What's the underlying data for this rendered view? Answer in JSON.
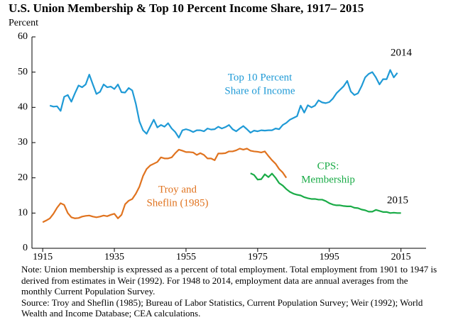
{
  "chart_data": {
    "type": "line",
    "title": "U.S. Union Membership & Top 10 Percent Income Share, 1917– 2015",
    "y_label": "Percent",
    "xlim": [
      1912,
      2022
    ],
    "xticks": [
      1915,
      1935,
      1955,
      1975,
      1995,
      2015
    ],
    "ylim": [
      0,
      60
    ],
    "yticks": [
      0,
      10,
      20,
      30,
      40,
      50,
      60
    ],
    "grid": false,
    "series": [
      {
        "name": [
          "Top 10 Percent",
          "Share of Income"
        ],
        "end_label": "2014",
        "color": "#1f9ad6",
        "x": [
          1917,
          1918,
          1919,
          1920,
          1921,
          1922,
          1923,
          1924,
          1925,
          1926,
          1927,
          1928,
          1929,
          1930,
          1931,
          1932,
          1933,
          1934,
          1935,
          1936,
          1937,
          1938,
          1939,
          1940,
          1941,
          1942,
          1943,
          1944,
          1945,
          1946,
          1947,
          1948,
          1949,
          1950,
          1951,
          1952,
          1953,
          1954,
          1955,
          1956,
          1957,
          1958,
          1959,
          1960,
          1961,
          1962,
          1963,
          1964,
          1965,
          1966,
          1967,
          1968,
          1969,
          1970,
          1971,
          1972,
          1973,
          1974,
          1975,
          1976,
          1977,
          1978,
          1979,
          1980,
          1981,
          1982,
          1983,
          1984,
          1985,
          1986,
          1987,
          1988,
          1989,
          1990,
          1991,
          1992,
          1993,
          1994,
          1995,
          1996,
          1997,
          1998,
          1999,
          2000,
          2001,
          2002,
          2003,
          2004,
          2005,
          2006,
          2007,
          2008,
          2009,
          2010,
          2011,
          2012,
          2013,
          2014
        ],
        "values": [
          40.5,
          40.2,
          40.3,
          39,
          43,
          43.5,
          41.6,
          44,
          46.2,
          45.7,
          46.5,
          49.3,
          46.5,
          43.8,
          44.4,
          46.5,
          45.7,
          45.9,
          45.2,
          46.5,
          44.3,
          44.2,
          45.5,
          44.8,
          41,
          36,
          33.5,
          32.5,
          34.5,
          36.5,
          34.3,
          35,
          34.5,
          35.5,
          34,
          33,
          31.4,
          33.5,
          33.8,
          33.5,
          33,
          33.5,
          33.5,
          33.2,
          34,
          33.7,
          33.8,
          34.5,
          34,
          34.4,
          35,
          33.8,
          33.2,
          34,
          34.7,
          33.8,
          32.8,
          33.4,
          33.2,
          33.5,
          33.4,
          33.5,
          33.5,
          34,
          33.8,
          35,
          35.6,
          36.5,
          37,
          37.5,
          40.5,
          38.5,
          40.6,
          40,
          40.5,
          42,
          41.4,
          41.2,
          41.5,
          42.5,
          44,
          45,
          46,
          47.5,
          44.5,
          43.5,
          44,
          46,
          48.5,
          49.5,
          50,
          48.5,
          46.5,
          48,
          48,
          50.6,
          48.5,
          49.8
        ]
      },
      {
        "name": [
          "Troy and",
          "Sheflin (1985)"
        ],
        "color": "#e0731f",
        "x": [
          1915,
          1916,
          1917,
          1918,
          1919,
          1920,
          1921,
          1922,
          1923,
          1924,
          1925,
          1926,
          1927,
          1928,
          1929,
          1930,
          1931,
          1932,
          1933,
          1934,
          1935,
          1936,
          1937,
          1938,
          1939,
          1940,
          1941,
          1942,
          1943,
          1944,
          1945,
          1946,
          1947,
          1948,
          1949,
          1950,
          1951,
          1952,
          1953,
          1954,
          1955,
          1956,
          1957,
          1958,
          1959,
          1960,
          1961,
          1962,
          1963,
          1964,
          1965,
          1966,
          1967,
          1968,
          1969,
          1970,
          1971,
          1972,
          1973,
          1974,
          1975,
          1976,
          1977,
          1978,
          1979,
          1980,
          1981,
          1982,
          1983
        ],
        "values": [
          7.4,
          7.9,
          8.5,
          9.8,
          11.5,
          12.8,
          12.3,
          10,
          8.8,
          8.5,
          8.6,
          9,
          9.2,
          9.3,
          9,
          8.8,
          9,
          9.3,
          9.1,
          9.5,
          9.8,
          8.5,
          9.5,
          12.5,
          13.5,
          14,
          15.5,
          17.5,
          20.5,
          22.5,
          23.5,
          24,
          24.5,
          25.8,
          25.5,
          25.5,
          25.8,
          27,
          28,
          27.7,
          27.3,
          27.3,
          27.2,
          26.5,
          27,
          26.5,
          25.5,
          25.5,
          25,
          26.9,
          26.9,
          27,
          27.5,
          27.5,
          27.8,
          28.3,
          28,
          28.3,
          27.7,
          27.5,
          27.4,
          27.2,
          27.5,
          26.2,
          25,
          24,
          22.5,
          21.5,
          20
        ]
      },
      {
        "name": [
          "CPS:",
          "Membership"
        ],
        "end_label": "2015",
        "color": "#1aab47",
        "x": [
          1973,
          1974,
          1975,
          1976,
          1977,
          1978,
          1979,
          1980,
          1981,
          1982,
          1983,
          1984,
          1985,
          1986,
          1987,
          1988,
          1989,
          1990,
          1991,
          1992,
          1993,
          1994,
          1995,
          1996,
          1997,
          1998,
          1999,
          2000,
          2001,
          2002,
          2003,
          2004,
          2005,
          2006,
          2007,
          2008,
          2009,
          2010,
          2011,
          2012,
          2013,
          2014,
          2015
        ],
        "values": [
          21.3,
          20.8,
          19.5,
          19.6,
          21,
          20.2,
          21.2,
          20,
          18.5,
          17.8,
          16.8,
          16,
          15.5,
          15.2,
          15,
          14.5,
          14.2,
          14,
          14,
          13.8,
          13.8,
          13.4,
          12.8,
          12.4,
          12.2,
          12.2,
          12,
          11.9,
          11.9,
          11.5,
          11.4,
          11,
          10.8,
          10.4,
          10.4,
          10.9,
          10.6,
          10.3,
          10.3,
          10,
          10.1,
          10,
          10
        ]
      }
    ],
    "note": "Note: Union membership is expressed as a percent of total employment. Total employment from 1901 to 1947 is derived from estimates in Weir (1992). For 1948 to 2014, employment data are annual averages from the monthly Current Population Survey.",
    "source": "Source: Troy and Sheflin (1985); Bureau of Labor Statistics, Current Population Survey; Weir (1992); World Wealth and Income Database; CEA calculations."
  }
}
